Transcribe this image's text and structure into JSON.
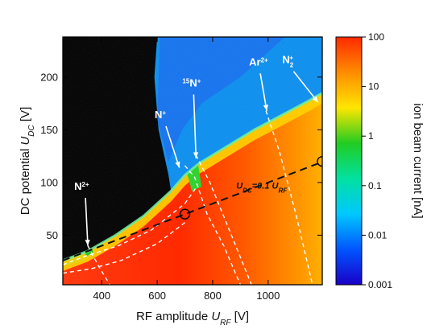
{
  "chart_data": {
    "type": "heatmap",
    "xlabel": {
      "main": "RF amplitude ",
      "var": "U",
      "sub": "RF",
      "unit": " [V]"
    },
    "ylabel": {
      "main": "DC potential ",
      "var": "U",
      "sub": "DC",
      "unit": " [V]"
    },
    "xlim": [
      260,
      1195
    ],
    "ylim": [
      3,
      238
    ],
    "x_ticks": [
      400,
      600,
      800,
      1000
    ],
    "y_ticks": [
      50,
      100,
      150,
      200
    ],
    "background_color": "#000000",
    "colorbar": {
      "label": "ion beam current [nA]",
      "scale": "log",
      "range": [
        0.001,
        100
      ],
      "ticks": [
        "100",
        "10",
        "1",
        "0.1",
        "0.01",
        "0.001"
      ],
      "colormap": [
        "#1a00c8",
        "#0055ff",
        "#00c8ff",
        "#00e1a0",
        "#22cc22",
        "#ffe600",
        "#ff8c00",
        "#ff2a00"
      ]
    },
    "stability_edge": {
      "points": [
        [
          260,
          26
        ],
        [
          350,
          35
        ],
        [
          450,
          50
        ],
        [
          550,
          68
        ],
        [
          650,
          92
        ],
        [
          700,
          107
        ],
        [
          750,
          118
        ],
        [
          850,
          134
        ],
        [
          950,
          150
        ],
        [
          1050,
          164
        ],
        [
          1150,
          178
        ],
        [
          1195,
          185
        ]
      ]
    },
    "operating_line": {
      "label_prefix": "U",
      "label_sub1": "DC",
      "label_mid": "=0.1 U",
      "label_sub2": "RF",
      "slope": 0.1,
      "x_range": [
        260,
        1195
      ],
      "circles": [
        [
          700,
          70
        ],
        [
          1195,
          120
        ]
      ]
    },
    "ion_peaks": [
      {
        "ion": "N",
        "sup": "2+",
        "pre": "",
        "tip": [
          350,
          40
        ],
        "label_pos": [
          330,
          90
        ]
      },
      {
        "ion": "N",
        "sup": "+",
        "pre": "",
        "tip": [
          680,
          114
        ],
        "label_pos": [
          620,
          158
        ]
      },
      {
        "ion": "N",
        "sup": "+",
        "pre": "15",
        "tip": [
          740,
          123
        ],
        "label_pos": [
          720,
          188
        ]
      },
      {
        "ion": "Ar",
        "sup": "2+",
        "pre": "",
        "tip": [
          995,
          168
        ],
        "label_pos": [
          960,
          208
        ]
      },
      {
        "ion": "N",
        "sup": "+",
        "sub": "2",
        "pre": "",
        "tip": [
          1180,
          176
        ],
        "label_pos": [
          1080,
          210
        ]
      }
    ],
    "dashed_guides": [
      {
        "points": [
          [
            260,
            22
          ],
          [
            340,
            30
          ],
          [
            460,
            40
          ],
          [
            580,
            55
          ],
          [
            700,
            80
          ],
          [
            740,
            95
          ]
        ]
      },
      {
        "points": [
          [
            260,
            14
          ],
          [
            360,
            18
          ],
          [
            470,
            26
          ],
          [
            600,
            42
          ],
          [
            700,
            62
          ]
        ]
      },
      {
        "points": [
          [
            700,
            116
          ],
          [
            735,
            105
          ],
          [
            780,
            70
          ],
          [
            840,
            40
          ],
          [
            900,
            3
          ]
        ]
      },
      {
        "points": [
          [
            740,
            126
          ],
          [
            790,
            100
          ],
          [
            860,
            55
          ],
          [
            940,
            3
          ]
        ]
      },
      {
        "points": [
          [
            992,
            168
          ],
          [
            1040,
            130
          ],
          [
            1100,
            70
          ],
          [
            1160,
            3
          ]
        ]
      },
      {
        "points": [
          [
            350,
            40
          ],
          [
            390,
            20
          ],
          [
            430,
            3
          ]
        ]
      }
    ]
  }
}
